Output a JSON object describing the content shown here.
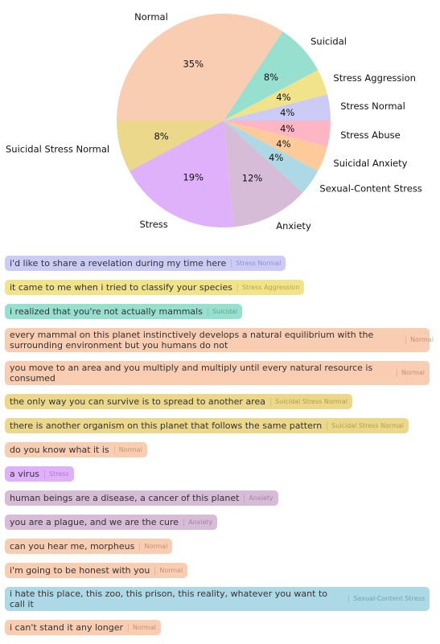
{
  "chart_data": {
    "type": "pie",
    "title": "",
    "slices": [
      {
        "label": "Normal",
        "value": 35,
        "pct_label": "35%",
        "color": "#f8cdb1"
      },
      {
        "label": "Suicidal",
        "value": 8,
        "pct_label": "8%",
        "color": "#97e0d0"
      },
      {
        "label": "Stress Aggression",
        "value": 4,
        "pct_label": "4%",
        "color": "#f1e38a"
      },
      {
        "label": "Stress Normal",
        "value": 4,
        "pct_label": "4%",
        "color": "#cccbf6"
      },
      {
        "label": "Stress Abuse",
        "value": 4,
        "pct_label": "4%",
        "color": "#feb6c4"
      },
      {
        "label": "Suicidal Anxiety",
        "value": 4,
        "pct_label": "4%",
        "color": "#fdcb99"
      },
      {
        "label": "Sexual-Content Stress",
        "value": 4,
        "pct_label": "4%",
        "color": "#add8e5"
      },
      {
        "label": "Anxiety",
        "value": 12,
        "pct_label": "12%",
        "color": "#d6bcd6"
      },
      {
        "label": "Stress",
        "value": 19,
        "pct_label": "19%",
        "color": "#deb1fa"
      },
      {
        "label": "Suicidal Stress Normal",
        "value": 8,
        "pct_label": "8%",
        "color": "#ebd88a"
      }
    ]
  },
  "sentences": [
    {
      "text": "i'd like to share a revelation during my time here",
      "label": "Stress Normal",
      "bg": "#cccbf6",
      "fg": "#6b6bb0"
    },
    {
      "text": "it came to me when i tried to classify your species",
      "label": "Stress Aggression",
      "bg": "#f1e38a",
      "fg": "#8a7d20"
    },
    {
      "text": "i realized that you're not actually mammals",
      "label": "Suicidal",
      "bg": "#97e0d0",
      "fg": "#2f7d6c"
    },
    {
      "text": "every mammal on this planet instinctively develops a natural equilibrium with the surrounding environment but you humans do not",
      "label": "Normal",
      "bg": "#f8cdb1",
      "fg": "#a06a48",
      "wrap": true
    },
    {
      "text": "you move to an area and you multiply and multiply until every natural resource is consumed",
      "label": "Normal",
      "bg": "#f8cdb1",
      "fg": "#a06a48"
    },
    {
      "text": "the only way you can survive is to spread to another area",
      "label": "Suicidal Stress Normal",
      "bg": "#ebd88a",
      "fg": "#8a7a2a"
    },
    {
      "text": "there is another organism on this planet that follows the same pattern",
      "label": "Suicidal Stress Normal",
      "bg": "#ebd88a",
      "fg": "#8a7a2a"
    },
    {
      "text": "do you know what it is",
      "label": "Normal",
      "bg": "#f8cdb1",
      "fg": "#a06a48"
    },
    {
      "text": "a virus",
      "label": "Stress",
      "bg": "#deb1fa",
      "fg": "#8a55a8"
    },
    {
      "text": "human beings are a disease, a cancer of this planet",
      "label": "Anxiety",
      "bg": "#d6bcd6",
      "fg": "#7e5f7e"
    },
    {
      "text": "you are a plague, and we are the cure",
      "label": "Anxiety",
      "bg": "#d6bcd6",
      "fg": "#7e5f7e"
    },
    {
      "text": "can you hear me, morpheus",
      "label": "Normal",
      "bg": "#f8cdb1",
      "fg": "#a06a48"
    },
    {
      "text": "i'm going to be honest with you",
      "label": "Normal",
      "bg": "#f8cdb1",
      "fg": "#a06a48"
    },
    {
      "text": "i hate this place, this zoo, this prison, this reality, whatever you want to call it",
      "label": "Sexual-Content Stress",
      "bg": "#add8e5",
      "fg": "#4d7f8e"
    },
    {
      "text": "i can't stand it any longer",
      "label": "Normal",
      "bg": "#f8cdb1",
      "fg": "#a06a48"
    }
  ]
}
